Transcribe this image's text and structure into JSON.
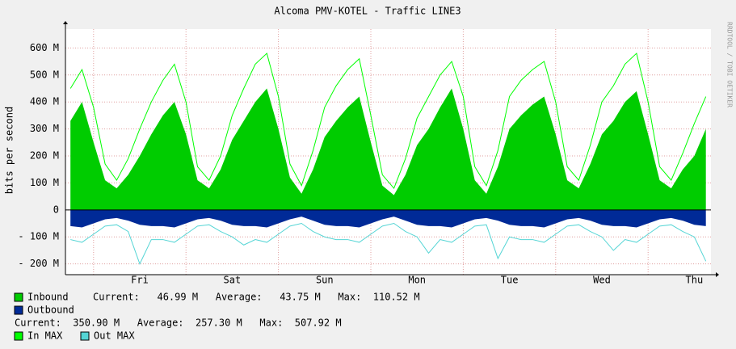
{
  "chart_data": {
    "type": "area",
    "title": "Alcoma PMV-KOTEL - Traffic LINE3",
    "y_label": "bits per second",
    "side_text": "RRDTOOL / TOBI OETIKER",
    "categories": [
      null,
      null,
      null,
      null,
      null,
      null,
      "Fri",
      null,
      null,
      null,
      null,
      null,
      null,
      null,
      "Sat",
      null,
      null,
      null,
      null,
      null,
      null,
      null,
      "Sun",
      null,
      null,
      null,
      null,
      null,
      null,
      null,
      "Mon",
      null,
      null,
      null,
      null,
      null,
      null,
      null,
      "Tue",
      null,
      null,
      null,
      null,
      null,
      null,
      null,
      "Wed",
      null,
      null,
      null,
      null,
      null,
      null,
      null,
      "Thu",
      null
    ],
    "ylim": [
      -240,
      670
    ],
    "yticks": [
      {
        "value": -200,
        "label": "- 200 M"
      },
      {
        "value": -100,
        "label": "- 100 M"
      },
      0,
      {
        "value": 100,
        "label": "100 M"
      },
      {
        "value": 200,
        "label": "200 M"
      },
      {
        "value": 300,
        "label": "300 M"
      },
      {
        "value": 400,
        "label": "400 M"
      },
      {
        "value": 500,
        "label": "500 M"
      },
      {
        "value": 600,
        "label": "600 M"
      }
    ],
    "grid": true,
    "series": [
      {
        "name": "Inbound",
        "color": "#00cc00",
        "style": "area",
        "values": [
          330,
          400,
          250,
          110,
          80,
          130,
          200,
          280,
          350,
          400,
          280,
          110,
          80,
          150,
          260,
          330,
          400,
          450,
          300,
          120,
          60,
          150,
          270,
          330,
          380,
          420,
          250,
          90,
          55,
          130,
          240,
          300,
          380,
          450,
          300,
          110,
          60,
          160,
          300,
          350,
          390,
          420,
          280,
          110,
          80,
          170,
          280,
          330,
          400,
          440,
          280,
          110,
          80,
          150,
          200,
          300
        ]
      },
      {
        "name": "Outbound",
        "color": "#002a97",
        "style": "area",
        "values": [
          -60,
          -65,
          -50,
          -35,
          -30,
          -40,
          -55,
          -60,
          -60,
          -65,
          -50,
          -35,
          -30,
          -40,
          -55,
          -60,
          -60,
          -65,
          -50,
          -35,
          -25,
          -40,
          -55,
          -60,
          -60,
          -65,
          -50,
          -35,
          -25,
          -40,
          -55,
          -60,
          -60,
          -65,
          -50,
          -35,
          -30,
          -40,
          -55,
          -60,
          -60,
          -65,
          -50,
          -35,
          -30,
          -40,
          -55,
          -60,
          -60,
          -65,
          -50,
          -35,
          -30,
          -40,
          -55,
          -60
        ]
      },
      {
        "name": "In MAX",
        "color": "#00ff00",
        "style": "line",
        "values": [
          450,
          520,
          380,
          170,
          110,
          190,
          300,
          400,
          480,
          540,
          400,
          160,
          110,
          200,
          350,
          450,
          540,
          580,
          420,
          170,
          90,
          220,
          380,
          460,
          520,
          560,
          350,
          130,
          80,
          190,
          340,
          420,
          500,
          550,
          420,
          160,
          90,
          220,
          420,
          480,
          520,
          550,
          400,
          160,
          110,
          240,
          400,
          460,
          540,
          580,
          400,
          160,
          110,
          210,
          320,
          420
        ]
      },
      {
        "name": "Out MAX",
        "color": "#55d5d5",
        "style": "line",
        "values": [
          -110,
          -120,
          -90,
          -60,
          -55,
          -80,
          -200,
          -110,
          -110,
          -120,
          -90,
          -60,
          -55,
          -80,
          -100,
          -130,
          -110,
          -120,
          -90,
          -60,
          -50,
          -80,
          -100,
          -110,
          -110,
          -120,
          -90,
          -60,
          -50,
          -80,
          -100,
          -160,
          -110,
          -120,
          -90,
          -60,
          -55,
          -180,
          -100,
          -110,
          -110,
          -120,
          -90,
          -60,
          -55,
          -80,
          -100,
          -150,
          -110,
          -120,
          -90,
          -60,
          -55,
          -80,
          -100,
          -190
        ]
      }
    ],
    "legend_stats": [
      "Current:   46.99 M   Average:   43.75 M   Max:  110.52 M",
      "Current:  350.90 M   Average:  257.30 M   Max:  507.92 M"
    ]
  }
}
